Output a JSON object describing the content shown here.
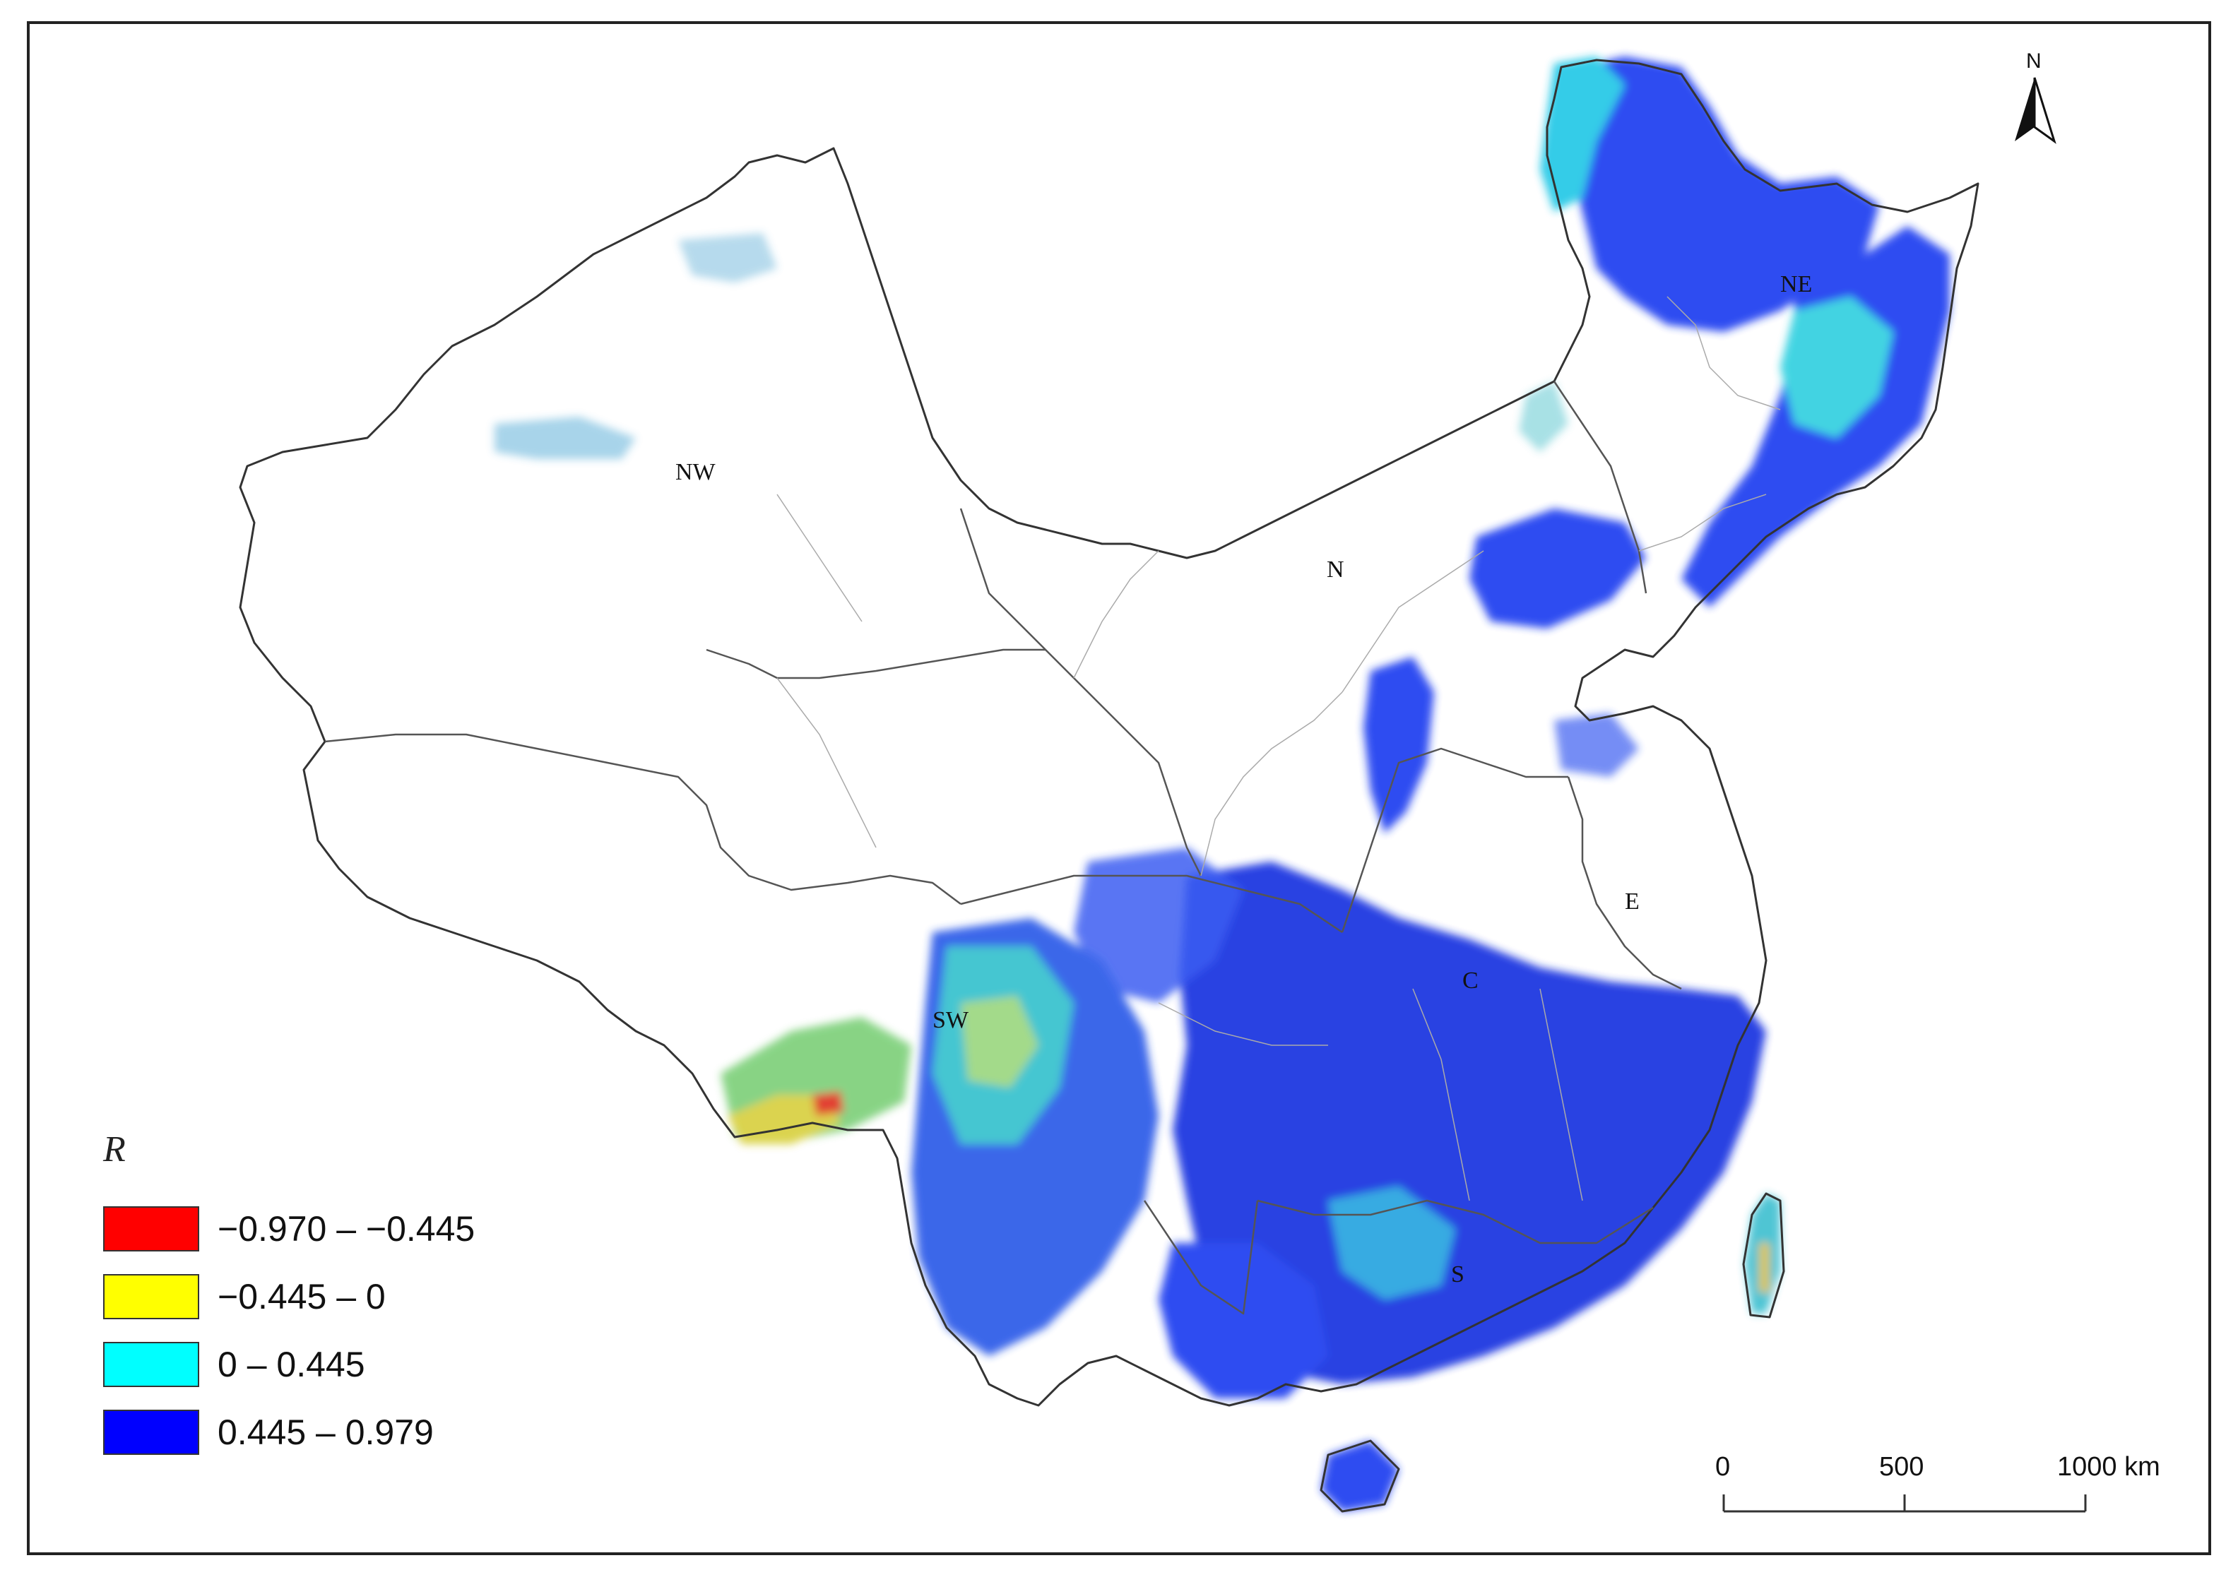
{
  "regions": [
    {
      "id": "NW",
      "label": "NW"
    },
    {
      "id": "N",
      "label": "N"
    },
    {
      "id": "NE",
      "label": "NE"
    },
    {
      "id": "E",
      "label": "E"
    },
    {
      "id": "C",
      "label": "C"
    },
    {
      "id": "SW",
      "label": "SW"
    },
    {
      "id": "S",
      "label": "S"
    }
  ],
  "north_arrow": {
    "label": "N"
  },
  "legend": {
    "title": "R",
    "classes": [
      {
        "label": "−0.970 – −0.445",
        "color": "#ff0000"
      },
      {
        "label": "−0.445 – 0",
        "color": "#ffff00"
      },
      {
        "label": "0 – 0.445",
        "color": "#00ffff"
      },
      {
        "label": "0.445 – 0.979",
        "color": "#0000ff"
      }
    ]
  },
  "scale_bar": {
    "ticks": [
      "0",
      "500",
      "1000 km"
    ]
  },
  "colors": {
    "boundary": "#333333",
    "inner_boundary": "#999999"
  }
}
